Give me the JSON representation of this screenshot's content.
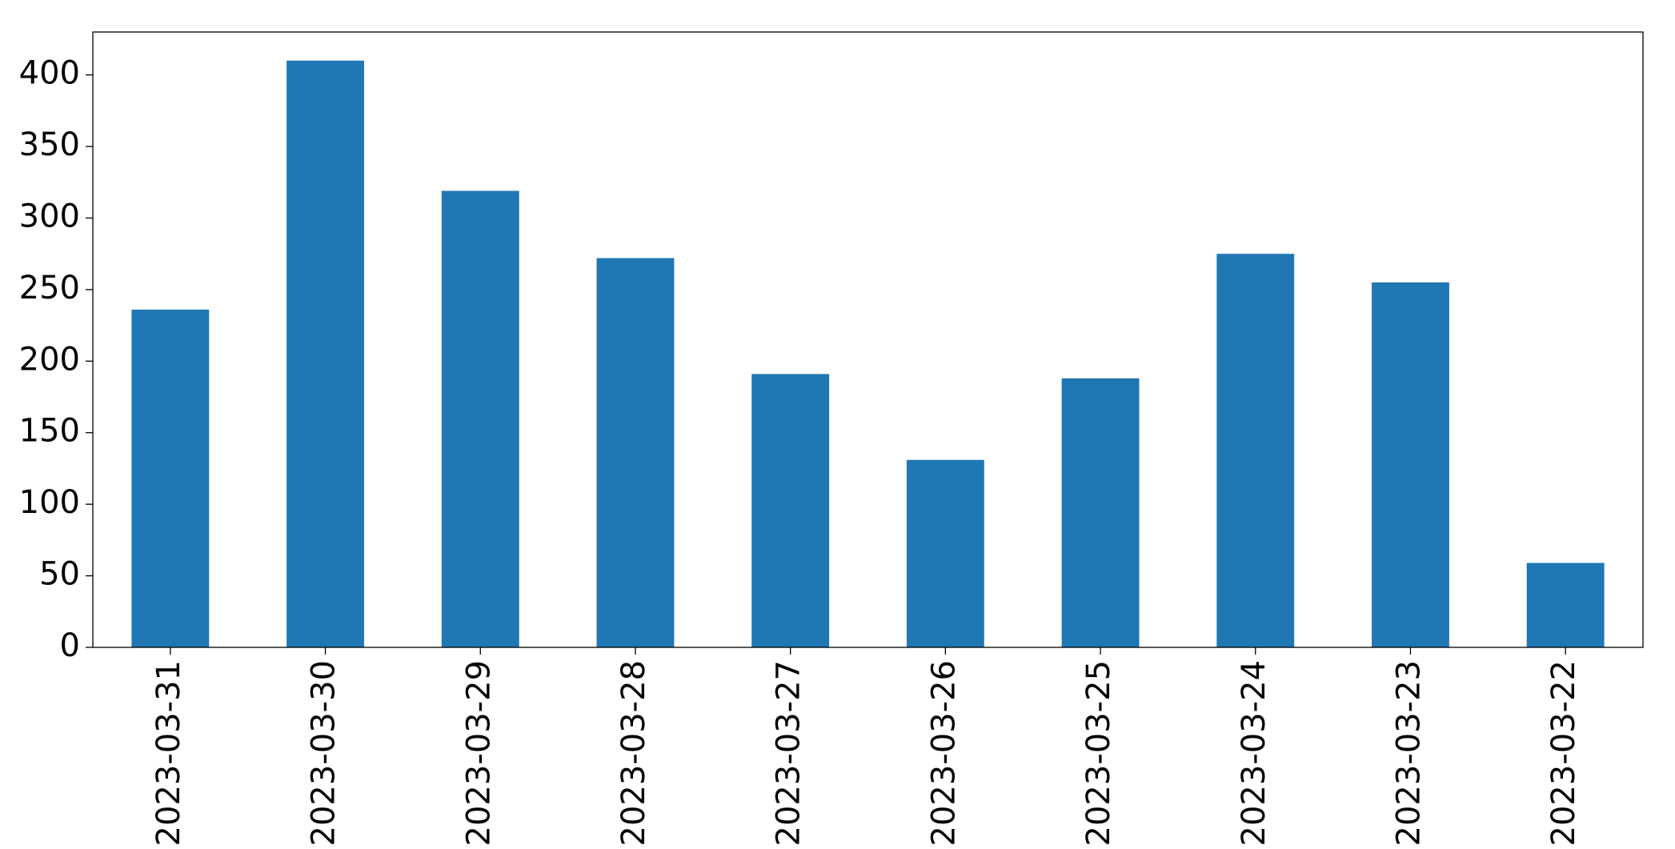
{
  "chart_data": {
    "type": "bar",
    "categories": [
      "2023-03-31",
      "2023-03-30",
      "2023-03-29",
      "2023-03-28",
      "2023-03-27",
      "2023-03-26",
      "2023-03-25",
      "2023-03-24",
      "2023-03-23",
      "2023-03-22"
    ],
    "values": [
      236,
      410,
      319,
      272,
      191,
      131,
      188,
      275,
      255,
      59
    ],
    "color": "#1f77b4",
    "ylim": [
      0,
      430
    ],
    "yticks": [
      0,
      50,
      100,
      150,
      200,
      250,
      300,
      350,
      400
    ],
    "grid": false
  }
}
